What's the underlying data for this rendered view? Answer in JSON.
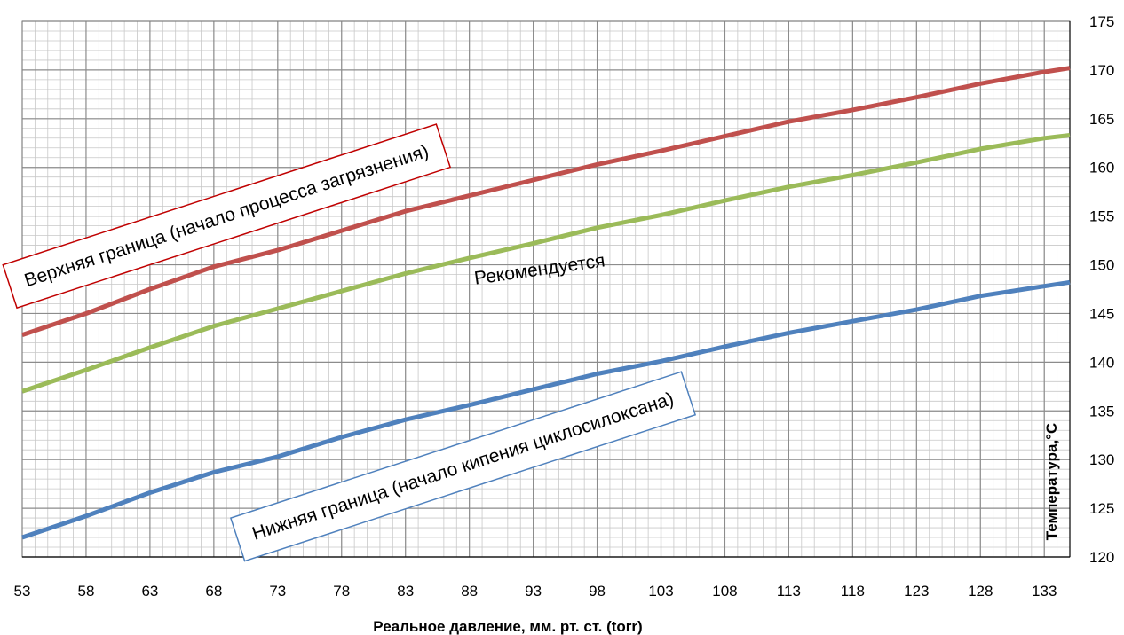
{
  "chart_data": {
    "type": "line",
    "title": "",
    "xlabel": "Реальное давление, мм. рт. ст. (torr)",
    "ylabel": "Температура,°C",
    "xlim": [
      53,
      135
    ],
    "ylim": [
      120,
      175
    ],
    "x_ticks": [
      53,
      58,
      63,
      68,
      73,
      78,
      83,
      88,
      93,
      98,
      103,
      108,
      113,
      118,
      123,
      128,
      133
    ],
    "y_ticks": [
      120,
      125,
      130,
      135,
      140,
      145,
      150,
      155,
      160,
      165,
      170,
      175
    ],
    "y_axis_side": "right",
    "grid": true,
    "legend": "none",
    "series": [
      {
        "key": "upper",
        "color": "#c0504d",
        "x": [
          53,
          58,
          63,
          68,
          73,
          78,
          83,
          88,
          93,
          98,
          103,
          108,
          113,
          118,
          123,
          128,
          133,
          135
        ],
        "y": [
          142.8,
          145.0,
          147.5,
          149.8,
          151.5,
          153.5,
          155.5,
          157.1,
          158.7,
          160.3,
          161.7,
          163.2,
          164.7,
          165.9,
          167.2,
          168.6,
          169.8,
          170.2
        ]
      },
      {
        "key": "recommended",
        "color": "#9bbb59",
        "x": [
          53,
          58,
          63,
          68,
          73,
          78,
          83,
          88,
          93,
          98,
          103,
          108,
          113,
          118,
          123,
          128,
          133,
          135
        ],
        "y": [
          137.0,
          139.2,
          141.5,
          143.7,
          145.5,
          147.3,
          149.1,
          150.7,
          152.2,
          153.8,
          155.1,
          156.6,
          158.0,
          159.2,
          160.5,
          161.9,
          163.0,
          163.3
        ]
      },
      {
        "key": "lower",
        "color": "#4f81bd",
        "x": [
          53,
          58,
          63,
          68,
          73,
          78,
          83,
          88,
          93,
          98,
          103,
          108,
          113,
          118,
          123,
          128,
          133,
          135
        ],
        "y": [
          122.0,
          124.2,
          126.6,
          128.7,
          130.3,
          132.3,
          134.1,
          135.6,
          137.2,
          138.8,
          140.1,
          141.6,
          143.0,
          144.2,
          145.4,
          146.8,
          147.8,
          148.2
        ]
      }
    ],
    "annotations": [
      {
        "key": "upper_label",
        "text": "Верхняя граница (начало процесса загрязнения)",
        "x": 69,
        "y": 155,
        "angle": -18,
        "box_color": "#c00000"
      },
      {
        "key": "recommended_label",
        "text": "Рекомендуется",
        "x": 93.5,
        "y": 149.5,
        "angle": -8,
        "box_color": ""
      },
      {
        "key": "lower_label",
        "text": "Нижняя граница (начало кипения циклосилоксана)",
        "x": 87.5,
        "y": 129.3,
        "angle": -18,
        "box_color": "#4f81bd"
      }
    ]
  }
}
